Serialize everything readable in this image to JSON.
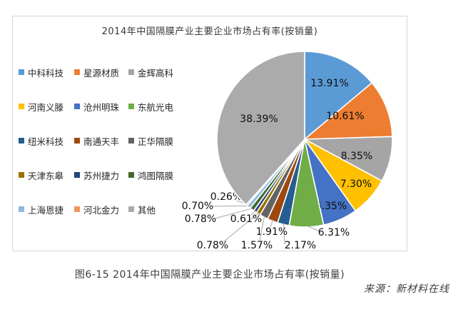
{
  "chart_data": {
    "type": "pie",
    "title": "2014年中国隔膜产业主要企业市场占有率(按销量)",
    "legend_position": "left",
    "start_angle_deg": 0,
    "direction": "clockwise",
    "total": 100.0,
    "slices": [
      {
        "name": "中科科技",
        "value": 13.91,
        "label": "13.91%",
        "color": "#5B9BD5"
      },
      {
        "name": "星源材质",
        "value": 10.61,
        "label": "10.61%",
        "color": "#ED7D31"
      },
      {
        "name": "金辉高科",
        "value": 8.35,
        "label": "8.35%",
        "color": "#A5A5A5"
      },
      {
        "name": "河南义滕",
        "value": 7.3,
        "label": "7.30%",
        "color": "#FFC000"
      },
      {
        "name": "沧州明珠",
        "value": 6.35,
        "label": "6.35%",
        "color": "#4472C4"
      },
      {
        "name": "东航光电",
        "value": 6.31,
        "label": "6.31%",
        "color": "#70AD47"
      },
      {
        "name": "纽米科技",
        "value": 2.17,
        "label": "2.17%",
        "color": "#255E91"
      },
      {
        "name": "南通天丰",
        "value": 1.91,
        "label": "1.91%",
        "color": "#9E480E"
      },
      {
        "name": "正华隔膜",
        "value": 1.57,
        "label": "1.57%",
        "color": "#636363"
      },
      {
        "name": "天津东皋",
        "value": 0.78,
        "label": "0.78%",
        "color": "#997300"
      },
      {
        "name": "苏州捷力",
        "value": 0.61,
        "label": "0.61%",
        "color": "#264478"
      },
      {
        "name": "鸿图隔膜",
        "value": 0.78,
        "label": "0.78%",
        "color": "#43682B"
      },
      {
        "name": "上海恩捷",
        "value": 0.7,
        "label": "0.70%",
        "color": "#8FBBE0"
      },
      {
        "name": "河北金力",
        "value": 0.26,
        "label": "0.26%",
        "color": "#F1975A"
      },
      {
        "name": "其他",
        "value": 38.39,
        "label": "38.39%",
        "color": "#ABABAB"
      }
    ]
  },
  "caption": "图6-15 2014年中国隔膜产业主要企业市场占有率(按销量)",
  "source": "来源：新材料在线"
}
